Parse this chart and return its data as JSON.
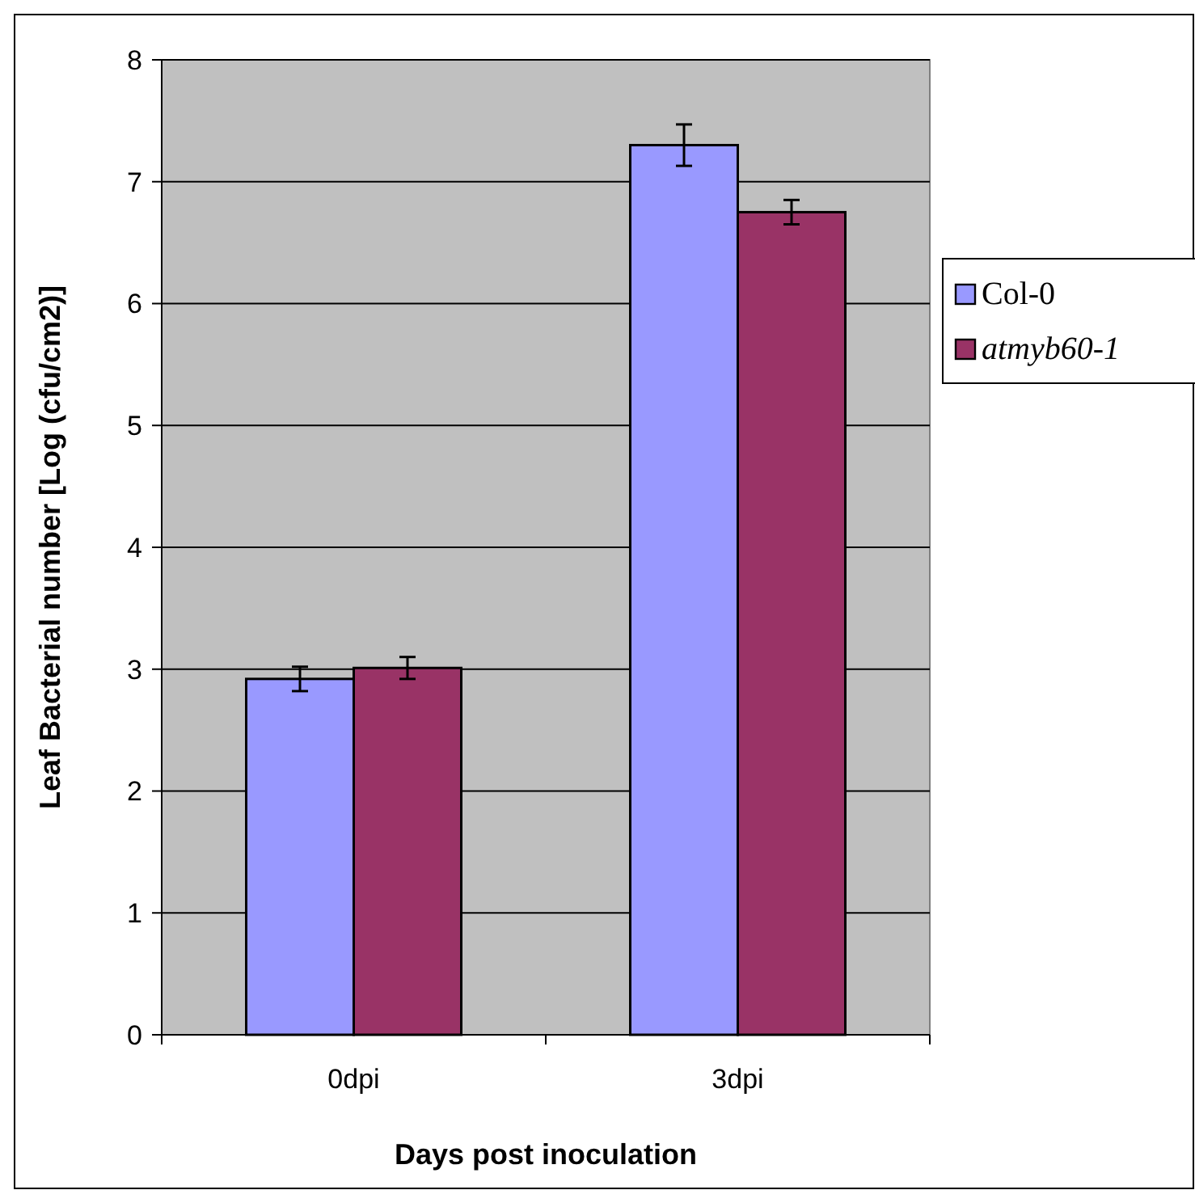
{
  "chart_data": {
    "type": "bar",
    "xlabel": "Days post inoculation",
    "ylabel": "Leaf Bacterial number [Log (cfu/cm2)]",
    "categories": [
      "0dpi",
      "3dpi"
    ],
    "series": [
      {
        "name": "Col-0",
        "color": "#9999ff",
        "values": [
          2.92,
          7.3
        ],
        "errors": [
          0.1,
          0.17
        ]
      },
      {
        "name": "atmyb60-1",
        "color": "#993366",
        "values": [
          3.01,
          6.75
        ],
        "errors": [
          0.09,
          0.1
        ]
      }
    ],
    "ylim": [
      0,
      8
    ],
    "yticks": [
      0,
      1,
      2,
      3,
      4,
      5,
      6,
      7,
      8
    ],
    "grid": "y",
    "legend": "right"
  }
}
